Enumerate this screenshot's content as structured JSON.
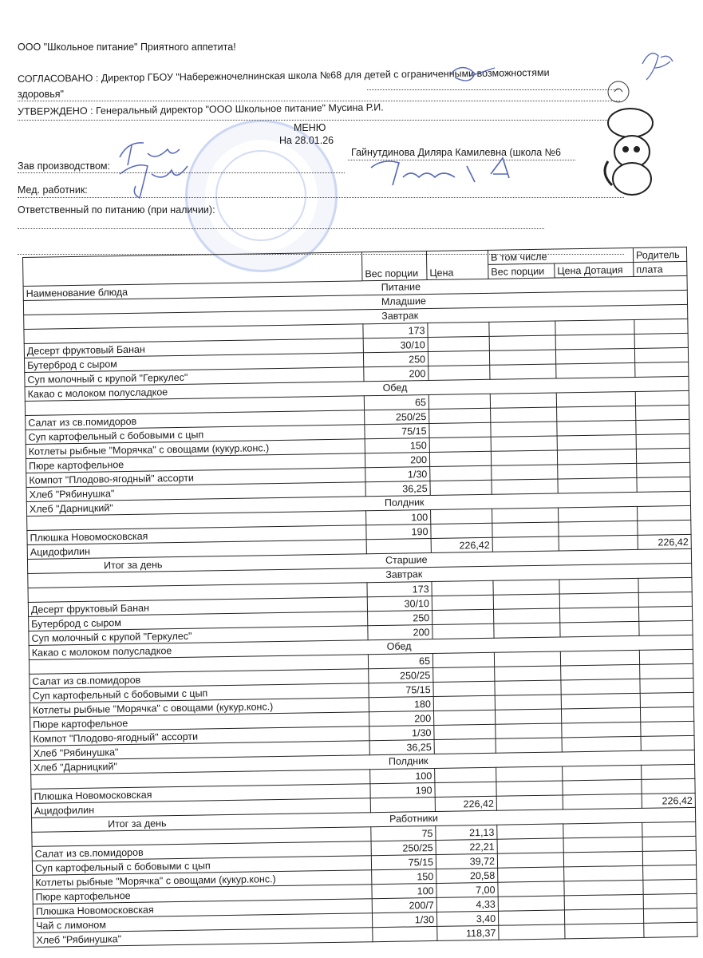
{
  "header": {
    "company_line": "ООО \"Школьное питание\" Приятного аппетита!",
    "agreed": "СОГЛАСОВАНО : Директор ГБОУ \"Набережночелнинская школа №68 для детей с ограниченными возможностями",
    "agreed_cont": "здоровья\"",
    "approved": "УТВЕРЖДЕНО : Генеральный директор \"ООО Школьное питание\" Мусина Р.И.",
    "menu_title": "МЕНЮ",
    "date": "На 28.01.26",
    "person": "Гайнутдинова Диляра Камилевна (школа №6",
    "production_head": "Зав производством:",
    "medic": "Мед. работник:",
    "responsible": "Ответственный по питанию (при наличии):",
    "signatures": [
      "Тону",
      "Ганиева К.А"
    ]
  },
  "table": {
    "headers": {
      "name": "Наименование блюда",
      "weight": "Вес порции",
      "price": "Цена",
      "including": "В том числе",
      "sub_weight": "Вес порции",
      "sub_price": "Цена Дотация",
      "parent": "Родитель",
      "parent2": "плата"
    },
    "rows": [
      {
        "section": "Питание"
      },
      {
        "section": "Младшие"
      },
      {
        "section": "Завтрак"
      },
      {
        "name": "",
        "w": "173"
      },
      {
        "name": "Десерт фруктовый Банан",
        "w": "30/10"
      },
      {
        "name": "Бутерброд с сыром",
        "w": "250"
      },
      {
        "name": "Суп молочный с крупой \"Геркулес\"",
        "w": "200"
      },
      {
        "name": "Какао с молоком полусладкое",
        "section": "Обед"
      },
      {
        "name": "",
        "w": "65"
      },
      {
        "name": "Салат из св.помидоров",
        "w": "250/25"
      },
      {
        "name": "Суп картофельный с бобовыми с цып",
        "w": "75/15"
      },
      {
        "name": "Котлеты рыбные \"Морячка\"  с овощами (кукур.конс.)",
        "w": "150"
      },
      {
        "name": "Пюре картофельное",
        "w": "200"
      },
      {
        "name": "Компот \"Плодово-ягодный\" ассорти",
        "w": "1/30"
      },
      {
        "name": "Хлеб \"Рябинушка\"",
        "w": "36,25"
      },
      {
        "name": "Хлеб \"Дарницкий\"",
        "section": "Полдник"
      },
      {
        "name": "",
        "w": "100"
      },
      {
        "name": "Плюшка Новомосковская",
        "w": "190"
      },
      {
        "name": "Ацидофилин",
        "p": "226,42",
        "parent": "226,42"
      },
      {
        "name": "Итог за день",
        "total": true,
        "section": "Старшие"
      },
      {
        "section": "Завтрак"
      },
      {
        "name": "",
        "w": "173"
      },
      {
        "name": "Десерт фруктовый Банан",
        "w": "30/10"
      },
      {
        "name": "Бутерброд с сыром",
        "w": "250"
      },
      {
        "name": "Суп молочный с крупой \"Геркулес\"",
        "w": "200"
      },
      {
        "name": "Какао с молоком полусладкое",
        "section": "Обед"
      },
      {
        "name": "",
        "w": "65"
      },
      {
        "name": "Салат из св.помидоров",
        "w": "250/25"
      },
      {
        "name": "Суп картофельный с бобовыми с цып",
        "w": "75/15"
      },
      {
        "name": "Котлеты рыбные \"Морячка\"  с овощами (кукур.конс.)",
        "w": "180"
      },
      {
        "name": "Пюре картофельное",
        "w": "200"
      },
      {
        "name": "Компот \"Плодово-ягодный\" ассорти",
        "w": "1/30"
      },
      {
        "name": "Хлеб \"Рябинушка\"",
        "w": "36,25"
      },
      {
        "name": "Хлеб \"Дарницкий\"",
        "section": "Полдник"
      },
      {
        "name": "",
        "w": "100"
      },
      {
        "name": "Плюшка Новомосковская",
        "w": "190"
      },
      {
        "name": "Ацидофилин",
        "p": "226,42",
        "parent": "226,42"
      },
      {
        "name": "Итог за день",
        "total": true,
        "section": "Работники"
      },
      {
        "name": "",
        "w": "75",
        "p": "21,13"
      },
      {
        "name": "Салат из св.помидоров",
        "w": "250/25",
        "p": "22,21"
      },
      {
        "name": "Суп картофельный с бобовыми с цып",
        "w": "75/15",
        "p": "39,72"
      },
      {
        "name": "Котлеты рыбные \"Морячка\"  с овощами (кукур.конс.)",
        "w": "150",
        "p": "20,58"
      },
      {
        "name": "Пюре картофельное",
        "w": "100",
        "p": "7,00"
      },
      {
        "name": "Плюшка Новомосковская",
        "w": "200/7",
        "p": "4,33"
      },
      {
        "name": "Чай с лимоном",
        "w": "1/30",
        "p": "3,40"
      },
      {
        "name": "Хлеб \"Рябинушка\"",
        "w": "",
        "p": "118,37"
      }
    ]
  }
}
